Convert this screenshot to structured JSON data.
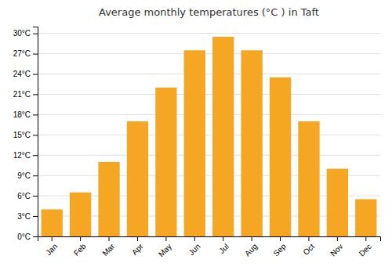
{
  "chart_data": {
    "type": "bar",
    "title": "Average monthly temperatures (°C ) in Taft",
    "categories": [
      "Jan",
      "Feb",
      "Mar",
      "Apr",
      "May",
      "Jun",
      "Jul",
      "Aug",
      "Sep",
      "Oct",
      "Nov",
      "Dec"
    ],
    "values": [
      4.0,
      6.5,
      11.0,
      17.0,
      22.0,
      27.5,
      29.5,
      27.5,
      23.5,
      17.0,
      10.0,
      5.5
    ],
    "color": "#F5A623",
    "ylim": [
      0,
      31
    ],
    "yticks": [
      {
        "value": 0,
        "label": "0°C"
      },
      {
        "value": 3,
        "label": "3°C"
      },
      {
        "value": 6,
        "label": "6°C"
      },
      {
        "value": 9,
        "label": "9°C"
      },
      {
        "value": 12,
        "label": "12°C"
      },
      {
        "value": 15,
        "label": "15°C"
      },
      {
        "value": 18,
        "label": "18°C"
      },
      {
        "value": 21,
        "label": "21°C"
      },
      {
        "value": 24,
        "label": "24°C"
      },
      {
        "value": 27,
        "label": "27°C"
      },
      {
        "value": 30,
        "label": "30°C"
      }
    ],
    "grid": true
  }
}
